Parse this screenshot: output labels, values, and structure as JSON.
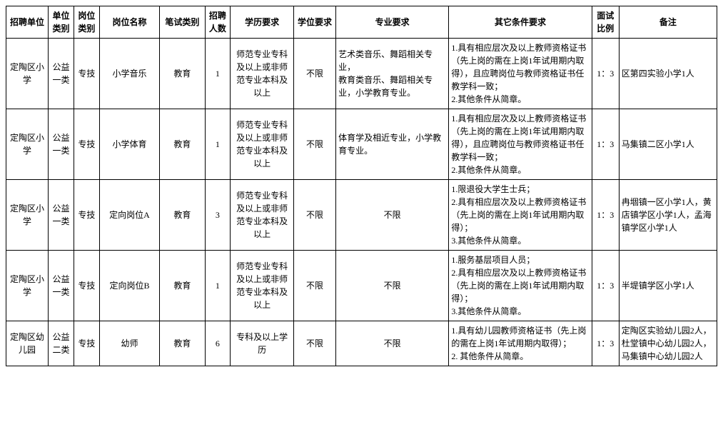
{
  "table": {
    "headers": {
      "unit": "招聘单位",
      "unitType": "单位类别",
      "postType": "岗位类别",
      "postName": "岗位名称",
      "examType": "笔试类别",
      "count": "招聘人数",
      "education": "学历要求",
      "degree": "学位要求",
      "major": "专业要求",
      "other": "其它条件要求",
      "ratio": "面试比例",
      "remark": "备注"
    },
    "rows": [
      {
        "unit": "定陶区小学",
        "unitType": "公益一类",
        "postType": "专技",
        "postName": "小学音乐",
        "examType": "教育",
        "count": "1",
        "education": "师范专业专科及以上或非师范专业本科及以上",
        "degree": "不限",
        "major": "艺术类音乐、舞蹈相关专业，\n教育类音乐、舞蹈相关专业，小学教育专业。",
        "other": "1.具有相应层次及以上教师资格证书（先上岗的需在上岗1年试用期内取得），且应聘岗位与教师资格证书任教学科一致；\n2.其他条件从简章。",
        "ratio": "1：3",
        "remark": "区第四实验小学1人"
      },
      {
        "unit": "定陶区小学",
        "unitType": "公益一类",
        "postType": "专技",
        "postName": "小学体育",
        "examType": "教育",
        "count": "1",
        "education": "师范专业专科及以上或非师范专业本科及以上",
        "degree": "不限",
        "major": "体育学及相近专业，小学教育专业。",
        "other": "1.具有相应层次及以上教师资格证书（先上岗的需在上岗1年试用期内取得），且应聘岗位与教师资格证书任教学科一致；\n2.其他条件从简章。",
        "ratio": "1：3",
        "remark": "马集镇二区小学1人"
      },
      {
        "unit": "定陶区小学",
        "unitType": "公益一类",
        "postType": "专技",
        "postName": "定向岗位A",
        "examType": "教育",
        "count": "3",
        "education": "师范专业专科及以上或非师范专业本科及以上",
        "degree": "不限",
        "major": "不限",
        "other": "1.限退役大学生士兵；\n2.具有相应层次及以上教师资格证书（先上岗的需在上岗1年试用期内取得）；\n3.其他条件从简章。",
        "ratio": "1：3",
        "remark": "冉堌镇一区小学1人，黄店镇学区小学1人，孟海镇学区小学1人"
      },
      {
        "unit": "定陶区小学",
        "unitType": "公益一类",
        "postType": "专技",
        "postName": "定向岗位B",
        "examType": "教育",
        "count": "1",
        "education": "师范专业专科及以上或非师范专业本科及以上",
        "degree": "不限",
        "major": "不限",
        "other": "1.服务基层项目人员；\n2.具有相应层次及以上教师资格证书（先上岗的需在上岗1年试用期内取得）；\n3.其他条件从简章。",
        "ratio": "1：3",
        "remark": "半堤镇学区小学1人"
      },
      {
        "unit": "定陶区幼儿园",
        "unitType": "公益二类",
        "postType": "专技",
        "postName": "幼师",
        "examType": "教育",
        "count": "6",
        "education": "专科及以上学历",
        "degree": "不限",
        "major": "不限",
        "other": "1.具有幼儿园教师资格证书（先上岗的需在上岗1年试用期内取得）；\n2. 其他条件从简章。",
        "ratio": "1：3",
        "remark": "定陶区实验幼儿园2人，杜堂镇中心幼儿园2人，马集镇中心幼儿园2人"
      }
    ],
    "styling": {
      "border_color": "#000000",
      "background_color": "#ffffff",
      "font_family": "SimSun",
      "header_font_size": 12,
      "cell_font_size": 12,
      "column_widths": {
        "unit": 56,
        "unitType": 34,
        "postType": 34,
        "postName": 80,
        "examType": 60,
        "count": 34,
        "education": 84,
        "degree": 56,
        "major": 150,
        "other": 190,
        "ratio": 36,
        "remark": 130
      }
    }
  }
}
